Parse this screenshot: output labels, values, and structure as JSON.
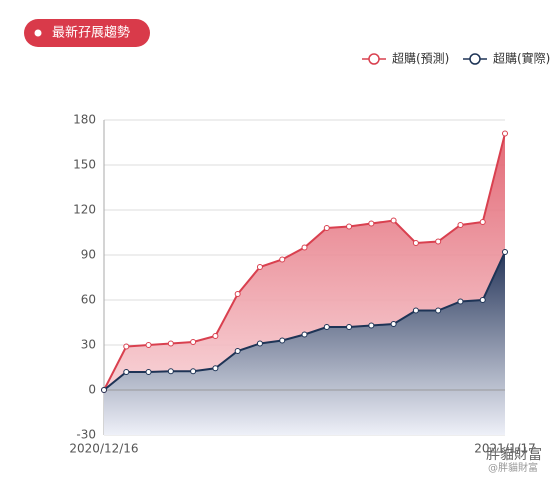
{
  "chart_data": {
    "type": "line",
    "title": "最新孖展趨勢",
    "categories": [
      "2020/12/16",
      null,
      null,
      null,
      null,
      null,
      null,
      null,
      null,
      null,
      null,
      null,
      null,
      null,
      null,
      null,
      null,
      null,
      "2021/1/17"
    ],
    "series": [
      {
        "name": "超購(預測)",
        "color": "#d9404f",
        "values": [
          0,
          29,
          30,
          31,
          32,
          36,
          64,
          82,
          87,
          95,
          108,
          109,
          111,
          113,
          98,
          99,
          110,
          112,
          171
        ]
      },
      {
        "name": "超購(實際)",
        "color": "#1e3456",
        "values": [
          0,
          12,
          12,
          12.5,
          12.5,
          14.5,
          26,
          31,
          33,
          37,
          42,
          42,
          43,
          44,
          53,
          53,
          59,
          60,
          92
        ]
      }
    ],
    "ylim": [
      -30,
      180
    ],
    "yticks": [
      -30,
      0,
      30,
      60,
      90,
      120,
      150,
      180
    ],
    "grid": true,
    "legend": "top-right",
    "watermark": [
      "胖貓財富",
      "@胖貓財富"
    ]
  }
}
